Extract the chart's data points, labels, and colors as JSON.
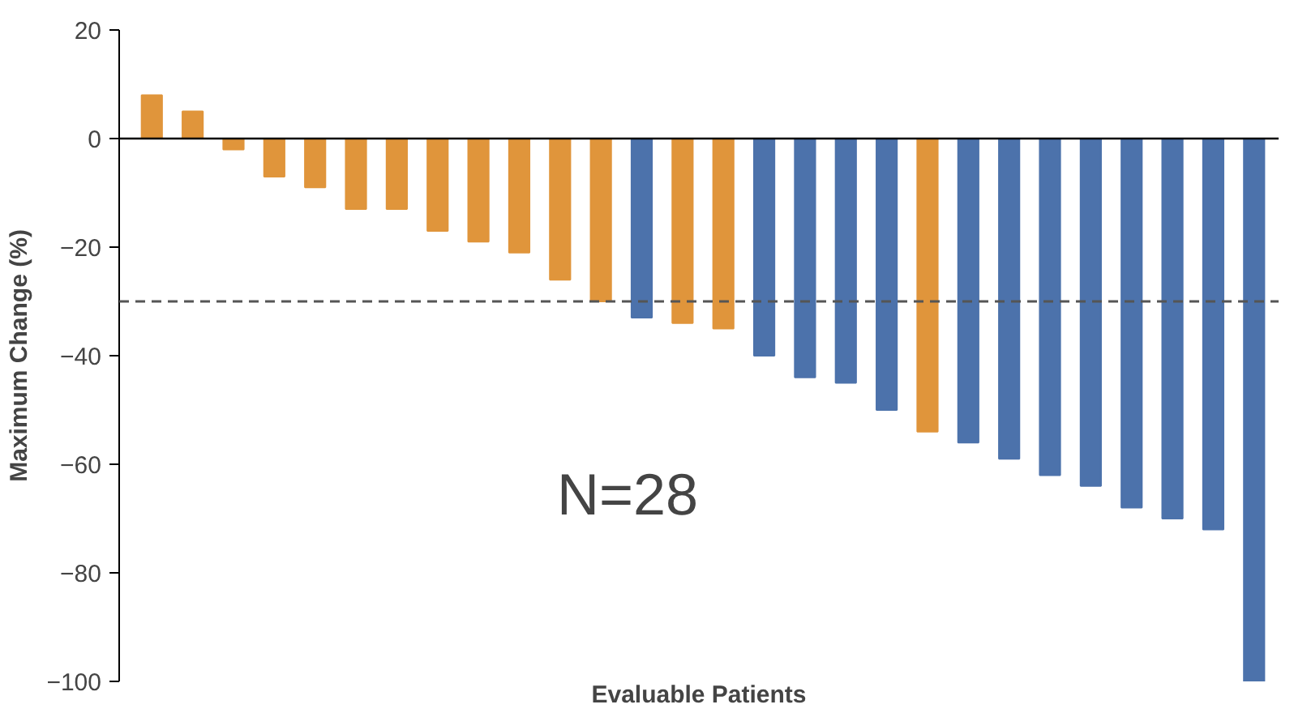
{
  "chart_data": {
    "type": "bar",
    "xlabel": "Evaluable Patients",
    "ylabel": "Maximum Change (%)",
    "categories": [
      null,
      null,
      null,
      null,
      null,
      null,
      null,
      null,
      null,
      null,
      null,
      null,
      null,
      null,
      null,
      null,
      null,
      null,
      null,
      null,
      null,
      null,
      null,
      null,
      null,
      null,
      null,
      null
    ],
    "values": [
      8,
      5,
      -2,
      -7,
      -9,
      -13,
      -13,
      -17,
      -19,
      -21,
      -26,
      -30,
      -33,
      -34,
      -35,
      -40,
      -44,
      -45,
      -50,
      -54,
      -56,
      -59,
      -62,
      -64,
      -68,
      -70,
      -72,
      -100
    ],
    "colors": [
      "#e0953b",
      "#e0953b",
      "#e0953b",
      "#e0953b",
      "#e0953b",
      "#e0953b",
      "#e0953b",
      "#e0953b",
      "#e0953b",
      "#e0953b",
      "#e0953b",
      "#e0953b",
      "#4c72ab",
      "#e0953b",
      "#e0953b",
      "#4c72ab",
      "#4c72ab",
      "#4c72ab",
      "#4c72ab",
      "#e0953b",
      "#4c72ab",
      "#4c72ab",
      "#4c72ab",
      "#4c72ab",
      "#4c72ab",
      "#4c72ab",
      "#4c72ab",
      "#4c72ab"
    ],
    "ylim": [
      -100,
      20
    ],
    "yticks": [
      -100,
      -80,
      -60,
      -40,
      -20,
      0,
      20
    ],
    "ref_lines": [
      {
        "axis": "y",
        "value": -30,
        "line_style": "dashed",
        "color": "#555555"
      }
    ],
    "annotations": [
      "N=28"
    ]
  }
}
